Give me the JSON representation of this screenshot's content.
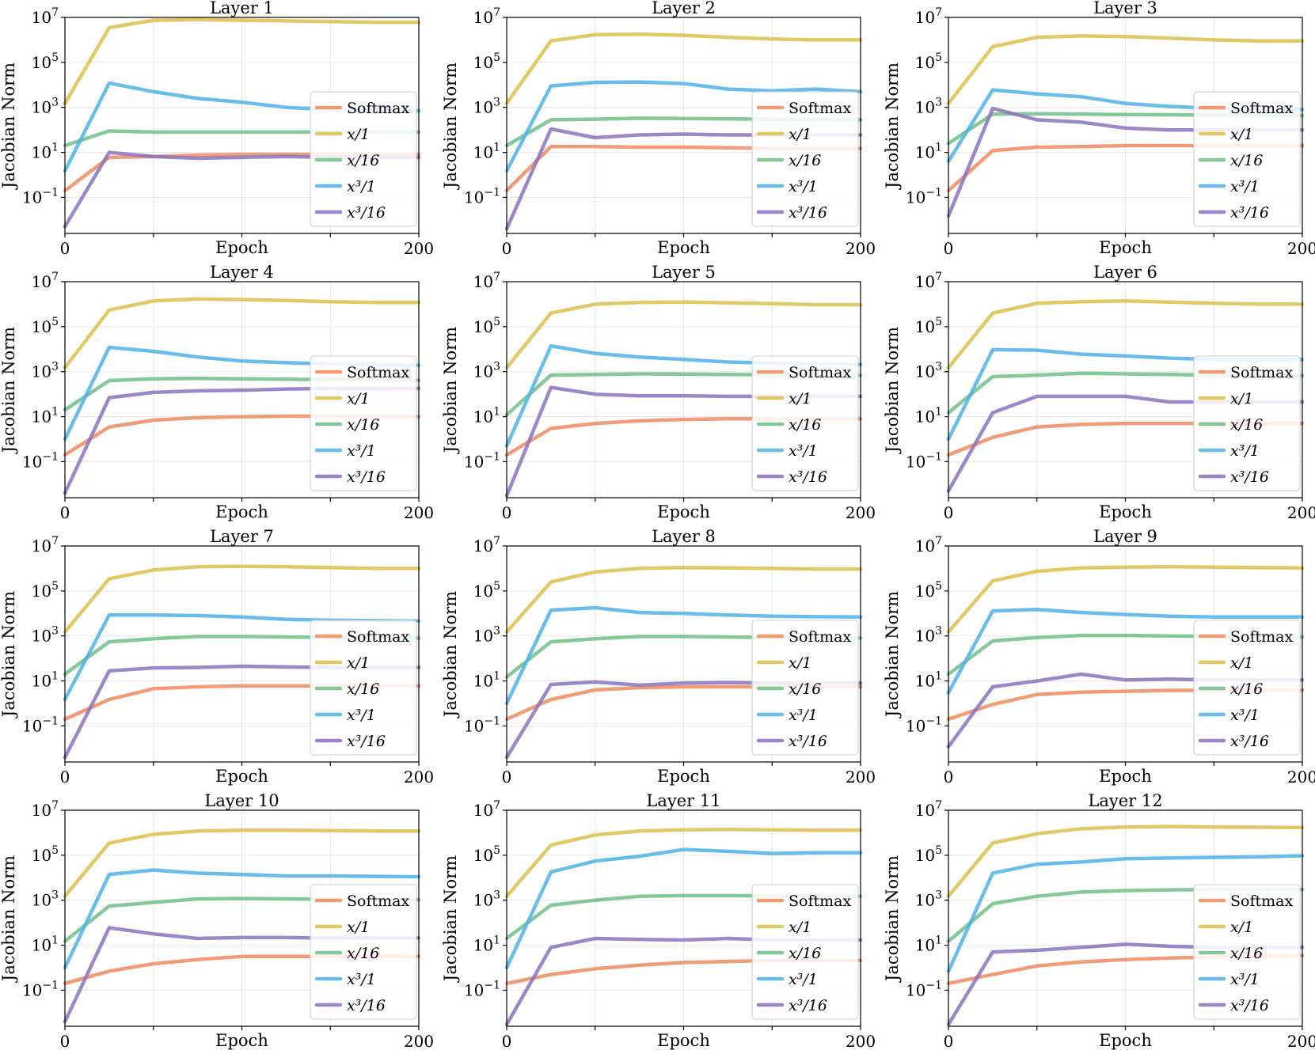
{
  "series_styles": [
    {
      "key": "softmax",
      "name": "Softmax",
      "color": "#ee8b5e"
    },
    {
      "key": "x1",
      "name": "x/1",
      "color": "#dcc04a"
    },
    {
      "key": "x16",
      "name": "x/16",
      "color": "#6fbf87"
    },
    {
      "key": "x3_1",
      "name": "x³/1",
      "color": "#4fb1e8"
    },
    {
      "key": "x3_16",
      "name": "x³/16",
      "color": "#8a73bf"
    }
  ],
  "chart_data": [
    {
      "type": "line",
      "title": "Layer 1",
      "xlabel": "Epoch",
      "ylabel": "Jacobian Norm",
      "yscale": "log",
      "xlim": [
        0,
        200
      ],
      "ylim": [
        0.0025,
        10000000
      ],
      "x": [
        0,
        25,
        50,
        75,
        100,
        125,
        150,
        175,
        200
      ],
      "series": [
        {
          "name": "Softmax",
          "values": [
            0.2,
            6,
            6.5,
            7.5,
            8,
            8,
            8,
            8,
            8
          ]
        },
        {
          "name": "x/1",
          "values": [
            1500,
            3500000,
            7500000,
            8000000,
            7500000,
            7000000,
            6500000,
            6000000,
            6000000
          ]
        },
        {
          "name": "x/16",
          "values": [
            20,
            90,
            80,
            80,
            80,
            80,
            80,
            80,
            80
          ]
        },
        {
          "name": "x³/1",
          "values": [
            1.5,
            12000,
            5000,
            2500,
            1700,
            1000,
            800,
            700,
            700
          ]
        },
        {
          "name": "x³/16",
          "values": [
            0.005,
            10,
            6.5,
            5.5,
            6,
            6.5,
            6,
            6,
            6
          ]
        }
      ]
    },
    {
      "type": "line",
      "title": "Layer 2",
      "xlabel": "Epoch",
      "ylabel": "Jacobian Norm",
      "yscale": "log",
      "xlim": [
        0,
        200
      ],
      "ylim": [
        0.0025,
        10000000
      ],
      "x": [
        0,
        25,
        50,
        75,
        100,
        125,
        150,
        175,
        200
      ],
      "series": [
        {
          "name": "Softmax",
          "values": [
            0.2,
            18,
            18,
            17,
            17,
            16,
            15,
            15,
            15
          ]
        },
        {
          "name": "x/1",
          "values": [
            1500,
            900000,
            1700000,
            1800000,
            1600000,
            1300000,
            1100000,
            1000000,
            1000000
          ]
        },
        {
          "name": "x/16",
          "values": [
            20,
            280,
            300,
            330,
            320,
            310,
            300,
            290,
            280
          ]
        },
        {
          "name": "x³/1",
          "values": [
            1.5,
            9000,
            13000,
            13500,
            11500,
            6500,
            5500,
            6500,
            5000
          ]
        },
        {
          "name": "x³/16",
          "values": [
            0.004,
            110,
            45,
            60,
            65,
            60,
            60,
            60,
            60
          ]
        }
      ]
    },
    {
      "type": "line",
      "title": "Layer 3",
      "xlabel": "Epoch",
      "ylabel": "Jacobian Norm",
      "yscale": "log",
      "xlim": [
        0,
        200
      ],
      "ylim": [
        0.0025,
        10000000
      ],
      "x": [
        0,
        25,
        50,
        75,
        100,
        125,
        150,
        175,
        200
      ],
      "series": [
        {
          "name": "Softmax",
          "values": [
            0.2,
            12,
            17,
            18,
            20,
            20,
            20,
            20,
            20
          ]
        },
        {
          "name": "x/1",
          "values": [
            1500,
            500000,
            1300000,
            1500000,
            1400000,
            1200000,
            1000000,
            900000,
            900000
          ]
        },
        {
          "name": "x/16",
          "values": [
            25,
            500,
            520,
            500,
            480,
            470,
            450,
            440,
            430
          ]
        },
        {
          "name": "x³/1",
          "values": [
            4,
            6000,
            4000,
            3000,
            1500,
            1100,
            900,
            800,
            800
          ]
        },
        {
          "name": "x³/16",
          "values": [
            0.015,
            900,
            280,
            220,
            120,
            100,
            100,
            100,
            100
          ]
        }
      ]
    },
    {
      "type": "line",
      "title": "Layer 4",
      "xlabel": "Epoch",
      "ylabel": "Jacobian Norm",
      "yscale": "log",
      "xlim": [
        0,
        200
      ],
      "ylim": [
        0.0025,
        10000000
      ],
      "x": [
        0,
        25,
        50,
        75,
        100,
        125,
        150,
        175,
        200
      ],
      "series": [
        {
          "name": "Softmax",
          "values": [
            0.2,
            3.5,
            7,
            9,
            10,
            10.5,
            10.5,
            10,
            10
          ]
        },
        {
          "name": "x/1",
          "values": [
            1500,
            550000,
            1400000,
            1700000,
            1600000,
            1450000,
            1300000,
            1200000,
            1200000
          ]
        },
        {
          "name": "x/16",
          "values": [
            20,
            400,
            480,
            500,
            480,
            460,
            440,
            420,
            410
          ]
        },
        {
          "name": "x³/1",
          "values": [
            1,
            12000,
            8000,
            4500,
            3000,
            2500,
            2200,
            2000,
            1900
          ]
        },
        {
          "name": "x³/16",
          "values": [
            0.004,
            70,
            120,
            140,
            150,
            170,
            180,
            180,
            180
          ]
        }
      ]
    },
    {
      "type": "line",
      "title": "Layer 5",
      "xlabel": "Epoch",
      "ylabel": "Jacobian Norm",
      "yscale": "log",
      "xlim": [
        0,
        200
      ],
      "ylim": [
        0.0025,
        10000000
      ],
      "x": [
        0,
        25,
        50,
        75,
        100,
        125,
        150,
        175,
        200
      ],
      "series": [
        {
          "name": "Softmax",
          "values": [
            0.2,
            3,
            5,
            6.5,
            7.5,
            8,
            8,
            8,
            8
          ]
        },
        {
          "name": "x/1",
          "values": [
            1500,
            400000,
            1000000,
            1200000,
            1250000,
            1150000,
            1050000,
            950000,
            950000
          ]
        },
        {
          "name": "x/16",
          "values": [
            12,
            700,
            750,
            800,
            780,
            750,
            720,
            700,
            680
          ]
        },
        {
          "name": "x³/1",
          "values": [
            0.5,
            14000,
            6500,
            4500,
            3500,
            2700,
            2400,
            2200,
            2100
          ]
        },
        {
          "name": "x³/16",
          "values": [
            0.003,
            200,
            100,
            85,
            85,
            80,
            80,
            80,
            80
          ]
        }
      ]
    },
    {
      "type": "line",
      "title": "Layer 6",
      "xlabel": "Epoch",
      "ylabel": "Jacobian Norm",
      "yscale": "log",
      "xlim": [
        0,
        200
      ],
      "ylim": [
        0.0025,
        10000000
      ],
      "x": [
        0,
        25,
        50,
        75,
        100,
        125,
        150,
        175,
        200
      ],
      "series": [
        {
          "name": "Softmax",
          "values": [
            0.2,
            1.2,
            3.5,
            4.5,
            5,
            5,
            5,
            5,
            5
          ]
        },
        {
          "name": "x/1",
          "values": [
            1500,
            400000,
            1100000,
            1300000,
            1400000,
            1250000,
            1100000,
            1000000,
            1000000
          ]
        },
        {
          "name": "x/16",
          "values": [
            15,
            600,
            700,
            850,
            800,
            750,
            700,
            680,
            650
          ]
        },
        {
          "name": "x³/1",
          "values": [
            1,
            9500,
            9000,
            6000,
            5000,
            4000,
            3500,
            3500,
            3500
          ]
        },
        {
          "name": "x³/16",
          "values": [
            0.005,
            15,
            80,
            80,
            80,
            45,
            45,
            45,
            45
          ]
        }
      ]
    },
    {
      "type": "line",
      "title": "Layer 7",
      "xlabel": "Epoch",
      "ylabel": "Jacobian Norm",
      "yscale": "log",
      "xlim": [
        0,
        200
      ],
      "ylim": [
        0.0025,
        10000000
      ],
      "x": [
        0,
        25,
        50,
        75,
        100,
        125,
        150,
        175,
        200
      ],
      "series": [
        {
          "name": "Softmax",
          "values": [
            0.2,
            1.5,
            4.5,
            5.5,
            6,
            6,
            6,
            6,
            6
          ]
        },
        {
          "name": "x/1",
          "values": [
            1500,
            350000,
            850000,
            1200000,
            1250000,
            1200000,
            1100000,
            1000000,
            1000000
          ]
        },
        {
          "name": "x/16",
          "values": [
            20,
            550,
            750,
            950,
            950,
            900,
            850,
            820,
            800
          ]
        },
        {
          "name": "x³/1",
          "values": [
            1.5,
            8500,
            8500,
            8000,
            7000,
            5500,
            5000,
            4800,
            4600
          ]
        },
        {
          "name": "x³/16",
          "values": [
            0.004,
            28,
            38,
            40,
            45,
            42,
            40,
            40,
            40
          ]
        }
      ]
    },
    {
      "type": "line",
      "title": "Layer 8",
      "xlabel": "Epoch",
      "ylabel": "Jacobian Norm",
      "yscale": "log",
      "xlim": [
        0,
        200
      ],
      "ylim": [
        0.0025,
        10000000
      ],
      "x": [
        0,
        25,
        50,
        75,
        100,
        125,
        150,
        175,
        200
      ],
      "series": [
        {
          "name": "Softmax",
          "values": [
            0.2,
            1.5,
            4,
            5,
            5.5,
            5.5,
            5.5,
            5.5,
            5.5
          ]
        },
        {
          "name": "x/1",
          "values": [
            1500,
            250000,
            700000,
            1000000,
            1100000,
            1050000,
            1000000,
            950000,
            950000
          ]
        },
        {
          "name": "x/16",
          "values": [
            15,
            550,
            750,
            950,
            950,
            900,
            850,
            830,
            800
          ]
        },
        {
          "name": "x³/1",
          "values": [
            1,
            14000,
            18000,
            11000,
            10000,
            8500,
            7500,
            7200,
            7000
          ]
        },
        {
          "name": "x³/16",
          "values": [
            0.004,
            7,
            9,
            6.5,
            8,
            8.5,
            8,
            8,
            8
          ]
        }
      ]
    },
    {
      "type": "line",
      "title": "Layer 9",
      "xlabel": "Epoch",
      "ylabel": "Jacobian Norm",
      "yscale": "log",
      "xlim": [
        0,
        200
      ],
      "ylim": [
        0.0025,
        10000000
      ],
      "x": [
        0,
        25,
        50,
        75,
        100,
        125,
        150,
        175,
        200
      ],
      "series": [
        {
          "name": "Softmax",
          "values": [
            0.2,
            0.9,
            2.5,
            3.2,
            3.5,
            3.8,
            3.8,
            3.8,
            3.8
          ]
        },
        {
          "name": "x/1",
          "values": [
            1500,
            280000,
            750000,
            1050000,
            1150000,
            1200000,
            1150000,
            1100000,
            1050000
          ]
        },
        {
          "name": "x/16",
          "values": [
            20,
            600,
            850,
            1050,
            1050,
            1000,
            950,
            920,
            900
          ]
        },
        {
          "name": "x³/1",
          "values": [
            3,
            13000,
            15000,
            11000,
            9000,
            7500,
            7000,
            7000,
            7000
          ]
        },
        {
          "name": "x³/16",
          "values": [
            0.012,
            5.5,
            10,
            20,
            11,
            12,
            11,
            11,
            11
          ]
        }
      ]
    },
    {
      "type": "line",
      "title": "Layer 10",
      "xlabel": "Epoch",
      "ylabel": "Jacobian Norm",
      "yscale": "log",
      "xlim": [
        0,
        200
      ],
      "ylim": [
        0.0025,
        10000000
      ],
      "x": [
        0,
        25,
        50,
        75,
        100,
        125,
        150,
        175,
        200
      ],
      "series": [
        {
          "name": "Softmax",
          "values": [
            0.2,
            0.7,
            1.5,
            2.3,
            3.2,
            3.2,
            3.2,
            3.2,
            3.2
          ]
        },
        {
          "name": "x/1",
          "values": [
            1500,
            350000,
            850000,
            1200000,
            1300000,
            1300000,
            1250000,
            1200000,
            1200000
          ]
        },
        {
          "name": "x/16",
          "values": [
            15,
            550,
            800,
            1150,
            1200,
            1150,
            1100,
            1050,
            1050
          ]
        },
        {
          "name": "x³/1",
          "values": [
            1,
            14000,
            22000,
            16000,
            14000,
            12000,
            12000,
            11500,
            11000
          ]
        },
        {
          "name": "x³/16",
          "values": [
            0.004,
            60,
            32,
            20,
            22,
            22,
            21,
            21,
            21
          ]
        }
      ]
    },
    {
      "type": "line",
      "title": "Layer 11",
      "xlabel": "Epoch",
      "ylabel": "Jacobian Norm",
      "yscale": "log",
      "xlim": [
        0,
        200
      ],
      "ylim": [
        0.0025,
        10000000
      ],
      "x": [
        0,
        25,
        50,
        75,
        100,
        125,
        150,
        175,
        200
      ],
      "series": [
        {
          "name": "Softmax",
          "values": [
            0.2,
            0.5,
            0.9,
            1.3,
            1.7,
            1.9,
            2.1,
            2.1,
            2.1
          ]
        },
        {
          "name": "x/1",
          "values": [
            1500,
            280000,
            800000,
            1200000,
            1350000,
            1400000,
            1350000,
            1300000,
            1300000
          ]
        },
        {
          "name": "x/16",
          "values": [
            20,
            600,
            1000,
            1500,
            1600,
            1600,
            1550,
            1500,
            1500
          ]
        },
        {
          "name": "x³/1",
          "values": [
            1,
            18000,
            55000,
            90000,
            180000,
            150000,
            120000,
            130000,
            130000
          ]
        },
        {
          "name": "x³/16",
          "values": [
            0.003,
            8,
            20,
            18,
            17,
            20,
            17,
            17,
            17
          ]
        }
      ]
    },
    {
      "type": "line",
      "title": "Layer 12",
      "xlabel": "Epoch",
      "ylabel": "Jacobian Norm",
      "yscale": "log",
      "xlim": [
        0,
        200
      ],
      "ylim": [
        0.0025,
        10000000
      ],
      "x": [
        0,
        25,
        50,
        75,
        100,
        125,
        150,
        175,
        200
      ],
      "series": [
        {
          "name": "Softmax",
          "values": [
            0.2,
            0.5,
            1.2,
            1.8,
            2.3,
            2.7,
            3,
            3.3,
            3.5
          ]
        },
        {
          "name": "x/1",
          "values": [
            1500,
            350000,
            900000,
            1500000,
            1800000,
            1900000,
            1800000,
            1750000,
            1700000
          ]
        },
        {
          "name": "x/16",
          "values": [
            15,
            700,
            1500,
            2300,
            2700,
            2900,
            3000,
            3000,
            3000
          ]
        },
        {
          "name": "x³/1",
          "values": [
            0.7,
            16000,
            40000,
            50000,
            70000,
            75000,
            80000,
            85000,
            95000
          ]
        },
        {
          "name": "x³/16",
          "values": [
            0.003,
            5,
            6,
            8,
            11,
            9,
            8,
            8,
            8
          ]
        }
      ]
    }
  ]
}
